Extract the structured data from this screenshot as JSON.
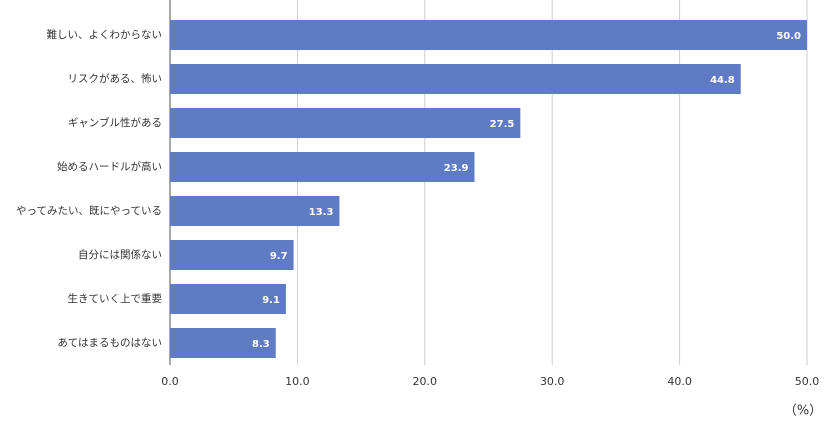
{
  "chart_data": {
    "type": "hbar",
    "categories": [
      "難しい、よくわからない",
      "リスクがある、怖い",
      "ギャンブル性がある",
      "始めるハードルが高い",
      "やってみたい、既にやっている",
      "自分には関係ない",
      "生きていく上で重要",
      "あてはまるものはない"
    ],
    "values": [
      50.0,
      44.8,
      27.5,
      23.9,
      13.3,
      9.7,
      9.1,
      8.3
    ],
    "value_labels": [
      "50.0",
      "44.8",
      "27.5",
      "23.9",
      "13.3",
      "9.7",
      "9.1",
      "8.3"
    ],
    "color": "#5f7bc4",
    "xlim": [
      0,
      50
    ],
    "xticks": [
      {
        "value": 0,
        "label": "0.0"
      },
      {
        "value": 10,
        "label": "10.0"
      },
      {
        "value": 20,
        "label": "20.0"
      },
      {
        "value": 30,
        "label": "30.0"
      },
      {
        "value": 40,
        "label": "40.0"
      },
      {
        "value": 50,
        "label": "50.0"
      }
    ],
    "x_label": "（%）",
    "grid": true
  }
}
